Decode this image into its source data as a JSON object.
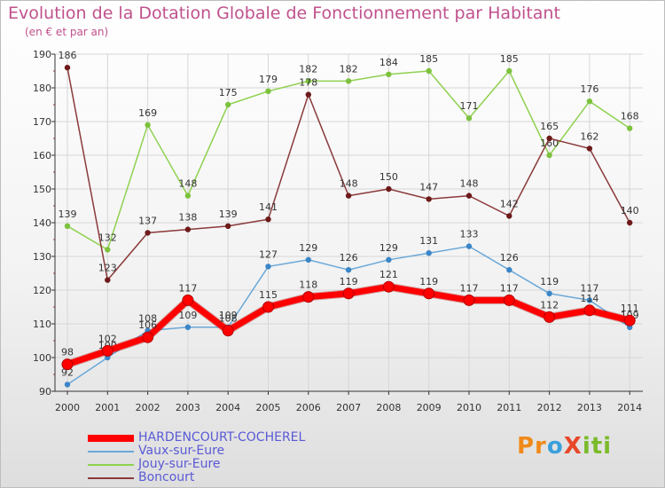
{
  "colors": {
    "title": "#c0518c",
    "axis": "#333333",
    "legend_text": "#5a5ad6"
  },
  "logo": {
    "text": "ProXiti",
    "parts": [
      "Pr",
      "o",
      "X",
      "iti"
    ]
  },
  "chart_data": {
    "type": "line",
    "title": "Evolution de la Dotation Globale de Fonctionnement par Habitant",
    "subtitle": "(en € et par an)",
    "xlabel": "",
    "ylabel": "",
    "ylim": [
      90,
      190
    ],
    "yticks": [
      90,
      100,
      110,
      120,
      130,
      140,
      150,
      160,
      170,
      180,
      190
    ],
    "categories": [
      "2000",
      "2001",
      "2002",
      "2003",
      "2004",
      "2005",
      "2006",
      "2007",
      "2008",
      "2009",
      "2010",
      "2011",
      "2012",
      "2013",
      "2014"
    ],
    "grid": true,
    "legend_position": "bottom-left",
    "series": [
      {
        "name": "Jouy-sur-Eure",
        "color": "#8fd14f",
        "marker": "#7cc23d",
        "values": [
          139,
          132,
          169,
          148,
          175,
          179,
          182,
          182,
          184,
          185,
          171,
          185,
          160,
          176,
          168
        ],
        "labels": [
          "139",
          "132",
          "169",
          "148",
          "175",
          "179",
          "182",
          "182",
          "184",
          "185",
          "171",
          "185",
          "160",
          "176",
          "168"
        ]
      },
      {
        "name": "Boncourt",
        "color": "#8a3a3a",
        "marker": "#6e1a1a",
        "values": [
          186,
          123,
          137,
          138,
          139,
          141,
          178,
          148,
          150,
          147,
          148,
          142,
          165,
          162,
          140
        ],
        "labels": [
          "186",
          "123",
          "137",
          "138",
          "139",
          "141",
          "178",
          "148",
          "150",
          "147",
          "148",
          "142",
          "165",
          "162",
          "140"
        ]
      },
      {
        "name": "Vaux-sur-Eure",
        "color": "#6aa8d8",
        "marker": "#3a86c8",
        "values": [
          92,
          100,
          108,
          109,
          109,
          127,
          129,
          126,
          129,
          131,
          133,
          126,
          119,
          117,
          109
        ],
        "labels": [
          "92",
          "100",
          "108",
          "109",
          "109",
          "127",
          "129",
          "126",
          "129",
          "131",
          "133",
          "126",
          "119",
          "117",
          "109"
        ]
      },
      {
        "name": "HARDENCOURT-COCHEREL",
        "color": "#ff0000",
        "marker": "#cc0000",
        "values": [
          98,
          102,
          106,
          117,
          108,
          115,
          118,
          119,
          121,
          119,
          117,
          117,
          112,
          114,
          111
        ],
        "labels": [
          "98",
          "102",
          "106",
          "117",
          "108",
          "115",
          "118",
          "119",
          "121",
          "119",
          "117",
          "117",
          "112",
          "114",
          "111"
        ]
      }
    ],
    "legend": [
      {
        "name": "HARDENCOURT-COCHEREL",
        "color": "#ff0000"
      },
      {
        "name": "Vaux-sur-Eure",
        "color": "#6aa8d8"
      },
      {
        "name": "Jouy-sur-Eure",
        "color": "#8fd14f"
      },
      {
        "name": "Boncourt",
        "color": "#8a3a3a"
      }
    ]
  }
}
